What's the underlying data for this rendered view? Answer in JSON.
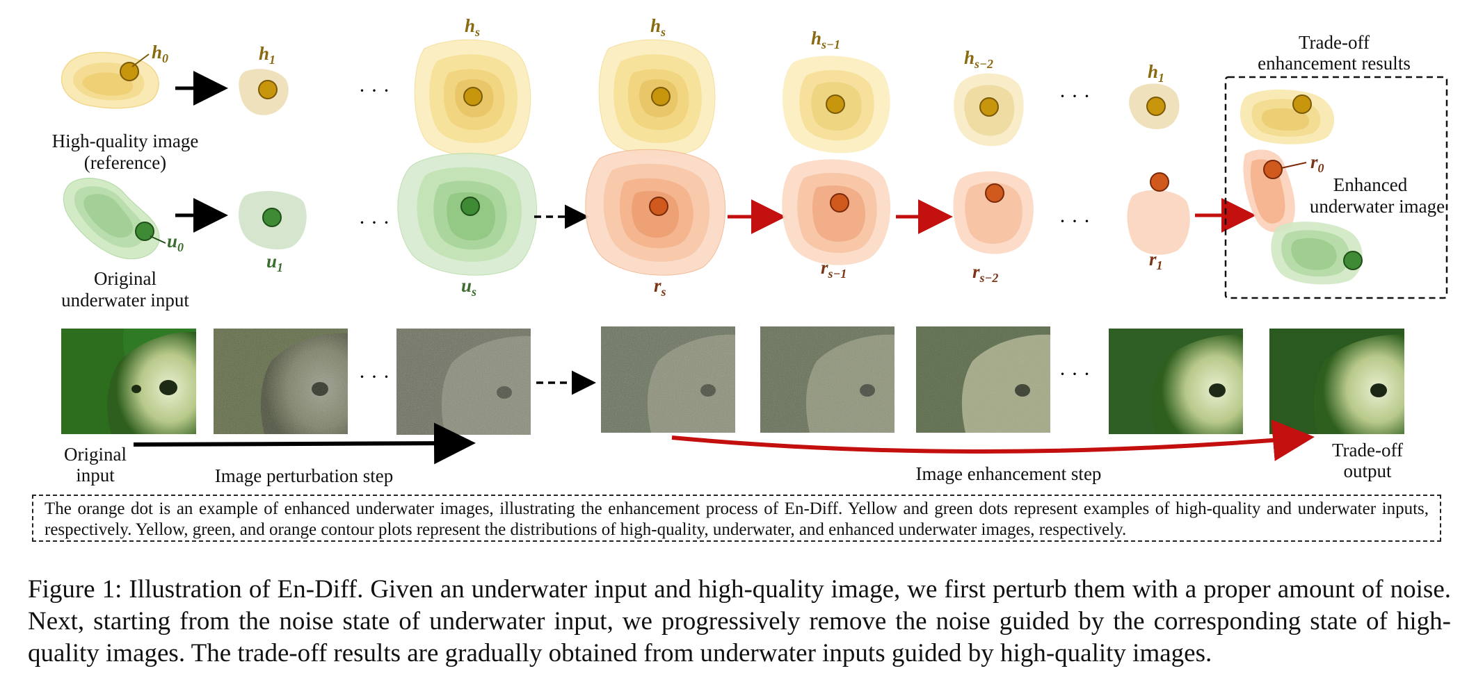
{
  "top_row_labels": {
    "h0": "h",
    "h0_sub": "0",
    "h1_a": "h",
    "h1_a_sub": "1",
    "hs_a": "h",
    "hs_a_sub": "s",
    "hs_b": "h",
    "hs_b_sub": "s",
    "hs1": "h",
    "hs1_sub": "s−1",
    "hs2": "h",
    "hs2_sub": "s−2",
    "h1_b": "h",
    "h1_b_sub": "1",
    "u0": "u",
    "u0_sub": "0",
    "u1": "u",
    "u1_sub": "1",
    "us": "u",
    "us_sub": "s",
    "rs": "r",
    "rs_sub": "s",
    "rs1": "r",
    "rs1_sub": "s−1",
    "rs2": "r",
    "rs2_sub": "s−2",
    "r1": "r",
    "r1_sub": "1",
    "r0": "r",
    "r0_sub": "0"
  },
  "text_labels": {
    "hq_line1": "High-quality image",
    "hq_line2": "(reference)",
    "uw_line1": "Original",
    "uw_line2": "underwater input",
    "tradeoff_line1": "Trade-off",
    "tradeoff_line2": "enhancement results",
    "enh_line1": "Enhanced",
    "enh_line2": "underwater image",
    "ellipsis": "· · ·"
  },
  "bottom_row_labels": {
    "orig_line1": "Original",
    "orig_line2": "input",
    "perturb_step": "Image perturbation step",
    "enhance_step": "Image enhancement step",
    "tradeoff_out_line1": "Trade-off",
    "tradeoff_out_line2": "output"
  },
  "legend_note": "The orange dot is an example of enhanced underwater images, illustrating the enhancement process of En-Diff. Yellow and green dots represent examples of high-quality and underwater inputs, respectively. Yellow, green, and orange contour plots represent the distributions of high-quality, underwater, and enhanced underwater images, respectively.",
  "figure_caption": "Figure 1: Illustration of En-Diff. Given an underwater input and high-quality image, we first perturb them with a proper amount of noise. Next, starting from the noise state of underwater input, we progressively remove the noise guided by the corresponding state of high-quality images. The trade-off results are gradually obtained from underwater inputs guided by high-quality images.",
  "colors": {
    "yellow_fill": "#f5d98a",
    "yellow_dot": "#c8960c",
    "green_fill": "#b5dba8",
    "green_dot": "#3f8a35",
    "orange_fill": "#f4b48c",
    "orange_dot": "#d05a1e",
    "red_arrow": "#c40f0f",
    "label_yellow": "#8a6a10",
    "label_green": "#3b6e2e",
    "label_orange": "#7a3516"
  }
}
